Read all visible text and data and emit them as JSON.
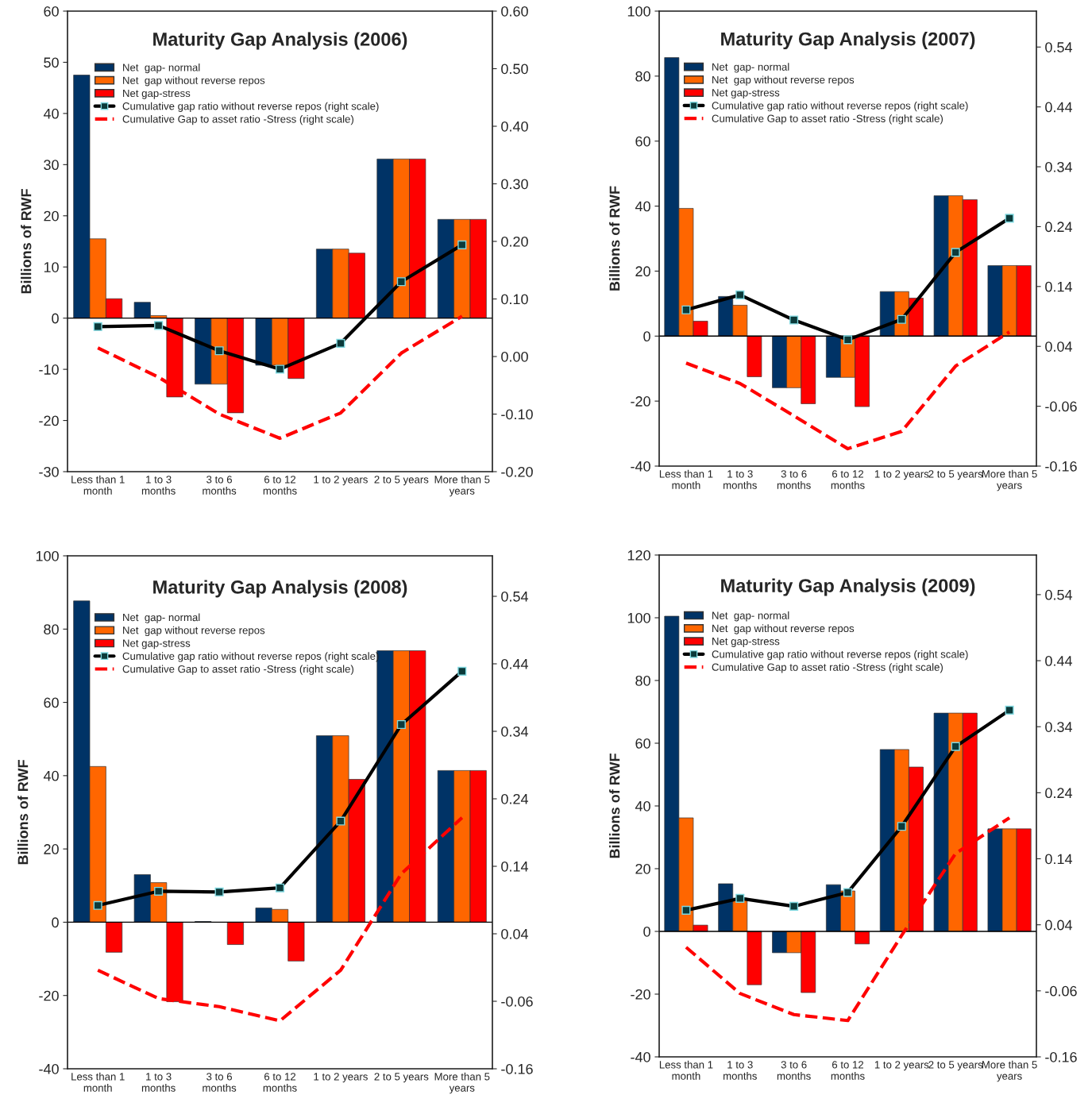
{
  "chart_data": [
    {
      "type": "bar",
      "title": "Maturity Gap Analysis (2006)",
      "ylabel": "Billions of RWF",
      "categories": [
        "Less than 1\nmonth",
        "1 to 3\nmonths",
        "3 to 6\nmonths",
        "6 to 12\nmonths",
        "1 to 2 years",
        "2 to 5 years",
        "More than 5\nyears"
      ],
      "ylim": [
        -30,
        60
      ],
      "yticks": [
        -30,
        -20,
        -10,
        0,
        10,
        20,
        30,
        40,
        50,
        60
      ],
      "y2lim": [
        -0.2,
        0.6
      ],
      "y2ticks": [
        {
          "value": -0.2,
          "label": "-0.20"
        },
        {
          "value": -0.1,
          "label": "-0.10"
        },
        {
          "value": 0,
          "label": "0.00"
        },
        {
          "value": 0.1,
          "label": "0.10"
        },
        {
          "value": 0.2,
          "label": "0.20"
        },
        {
          "value": 0.3,
          "label": "0.30"
        },
        {
          "value": 0.4,
          "label": "0.40"
        },
        {
          "value": 0.5,
          "label": "0.50"
        },
        {
          "value": 0.6,
          "label": "0.60"
        }
      ],
      "legend": "top",
      "series": [
        {
          "name": "Net  gap- normal",
          "color": "#003366",
          "values": [
            47.5,
            3.1,
            -12.9,
            -9.2,
            13.5,
            31.1,
            19.3
          ]
        },
        {
          "name": "Net  gap without reverse repos",
          "color": "#ff6600",
          "values": [
            15.5,
            0.5,
            -12.9,
            -9.2,
            13.5,
            31.1,
            19.3
          ]
        },
        {
          "name": "Net gap-stress",
          "color": "#ff0000",
          "values": [
            3.8,
            -15.4,
            -18.5,
            -11.8,
            12.7,
            31.1,
            19.3
          ]
        },
        {
          "type": "line",
          "axis": "y2",
          "marker": "square",
          "line_style": "solid",
          "name": "Cumulative gap ratio without reverse repos (right scale)",
          "color": "#000000",
          "values": [
            0.052,
            0.054,
            0.01,
            -0.022,
            0.023,
            0.13,
            0.194
          ]
        },
        {
          "type": "line",
          "axis": "y2",
          "marker": "none",
          "line_style": "dashed",
          "name": "Cumulative Gap to asset ratio -Stress (right scale)",
          "color": "#ff0000",
          "values": [
            0.015,
            -0.036,
            -0.1,
            -0.142,
            -0.098,
            0.006,
            0.07
          ]
        }
      ]
    },
    {
      "type": "bar",
      "title": "Maturity Gap Analysis (2007)",
      "ylabel": "Billions of RWF",
      "categories": [
        "Less than 1\nmonth",
        "1 to 3\nmonths",
        "3 to 6\nmonths",
        "6 to 12\nmonths",
        "1 to 2 years",
        "2 to 5 years",
        "More than 5\nyears"
      ],
      "ylim": [
        -40,
        100
      ],
      "yticks": [
        -40,
        -20,
        0,
        20,
        40,
        60,
        80,
        100
      ],
      "y2lim": [
        -0.16,
        0.6
      ],
      "y2ticks": [
        -0.16,
        -0.06,
        0.04,
        0.14,
        0.24,
        0.34,
        0.44,
        0.54
      ],
      "legend": "top",
      "series": [
        {
          "name": "Net  gap- normal",
          "color": "#003366",
          "values": [
            85.7,
            12.2,
            -15.9,
            -12.7,
            13.7,
            43.2,
            21.7
          ]
        },
        {
          "name": "Net  gap without reverse repos",
          "color": "#ff6600",
          "values": [
            39.3,
            9.5,
            -15.9,
            -12.7,
            13.7,
            43.2,
            21.7
          ]
        },
        {
          "name": "Net gap-stress",
          "color": "#ff0000",
          "values": [
            4.6,
            -12.5,
            -20.8,
            -21.7,
            11.7,
            42.0,
            21.7
          ]
        },
        {
          "type": "line",
          "axis": "y2",
          "marker": "square",
          "line_style": "solid",
          "name": "Cumulative gap ratio without reverse repos (right scale)",
          "color": "#000000",
          "values": [
            0.101,
            0.126,
            0.084,
            0.051,
            0.085,
            0.197,
            0.254
          ]
        },
        {
          "type": "line",
          "axis": "y2",
          "marker": "none",
          "line_style": "dashed",
          "name": "Cumulative Gap to asset ratio -Stress (right scale)",
          "color": "#ff0000",
          "values": [
            0.012,
            -0.022,
            -0.076,
            -0.131,
            -0.102,
            0.007,
            0.064
          ]
        }
      ]
    },
    {
      "type": "bar",
      "title": "Maturity Gap Analysis (2008)",
      "ylabel": "Billions of RWF",
      "categories": [
        "Less than 1\nmonth",
        "1 to 3\nmonths",
        "3 to 6\nmonths",
        "6 to 12\nmonths",
        "1 to 2 years",
        "2 to 5 years",
        "More than 5\nyears"
      ],
      "ylim": [
        -40,
        100
      ],
      "yticks": [
        -40,
        -20,
        0,
        20,
        40,
        60,
        80,
        100
      ],
      "y2lim": [
        -0.16,
        0.6
      ],
      "y2ticks": [
        -0.16,
        -0.06,
        0.04,
        0.14,
        0.24,
        0.34,
        0.44,
        0.54
      ],
      "legend": "top",
      "series": [
        {
          "name": "Net  gap- normal",
          "color": "#003366",
          "values": [
            87.7,
            13.0,
            0.2,
            3.9,
            50.9,
            74.1,
            41.4
          ]
        },
        {
          "name": "Net  gap without reverse repos",
          "color": "#ff6600",
          "values": [
            42.5,
            10.8,
            null,
            3.5,
            50.9,
            74.1,
            41.4
          ]
        },
        {
          "name": "Net gap-stress",
          "color": "#ff0000",
          "values": [
            -8.2,
            -21.7,
            -6.1,
            -10.6,
            39.0,
            74.1,
            41.4
          ]
        },
        {
          "type": "line",
          "axis": "y2",
          "marker": "square",
          "line_style": "solid",
          "name": "Cumulative gap ratio without reverse repos (right scale)",
          "color": "#000000",
          "values": [
            0.082,
            0.103,
            0.102,
            0.108,
            0.207,
            0.35,
            0.429
          ]
        },
        {
          "type": "line",
          "axis": "y2",
          "marker": "none",
          "line_style": "dashed",
          "name": "Cumulative Gap to asset ratio -Stress (right scale)",
          "color": "#ff0000",
          "values": [
            -0.014,
            -0.056,
            -0.068,
            -0.089,
            -0.014,
            0.129,
            0.212
          ]
        }
      ]
    },
    {
      "type": "bar",
      "title": "Maturity Gap Analysis (2009)",
      "ylabel": "Billions of RWF",
      "categories": [
        "Less than 1\nmonth",
        "1 to 3\nmonths",
        "3 to 6\nmonths",
        "6 to 12\nmonths",
        "1 to 2 years",
        "2 to 5 years",
        "More than 5\nyears"
      ],
      "ylim": [
        -40,
        120
      ],
      "yticks": [
        -40,
        -20,
        0,
        20,
        40,
        60,
        80,
        100,
        120
      ],
      "y2lim": [
        -0.16,
        0.6
      ],
      "y2ticks": [
        -0.16,
        -0.06,
        0.04,
        0.14,
        0.24,
        0.34,
        0.44,
        0.54
      ],
      "legend": "top",
      "series": [
        {
          "name": "Net  gap- normal",
          "color": "#003366",
          "values": [
            100.5,
            15.2,
            -6.8,
            14.9,
            58.0,
            69.6,
            32.7
          ]
        },
        {
          "name": "Net  gap without reverse repos",
          "color": "#ff6600",
          "values": [
            36.2,
            10.6,
            -6.8,
            12.9,
            58.0,
            69.6,
            32.7
          ]
        },
        {
          "name": "Net gap-stress",
          "color": "#ff0000",
          "values": [
            2.0,
            -17.0,
            -19.5,
            -4.0,
            52.4,
            69.6,
            32.7
          ]
        },
        {
          "type": "line",
          "axis": "y2",
          "marker": "square",
          "line_style": "solid",
          "name": "Cumulative gap ratio without reverse repos (right scale)",
          "color": "#000000",
          "values": [
            0.062,
            0.08,
            0.068,
            0.089,
            0.189,
            0.31,
            0.365
          ]
        },
        {
          "type": "line",
          "axis": "y2",
          "marker": "none",
          "line_style": "dashed",
          "name": "Cumulative Gap to asset ratio -Stress (right scale)",
          "color": "#ff0000",
          "values": [
            0.006,
            -0.064,
            -0.096,
            -0.105,
            0.024,
            0.148,
            0.202
          ]
        }
      ]
    }
  ]
}
